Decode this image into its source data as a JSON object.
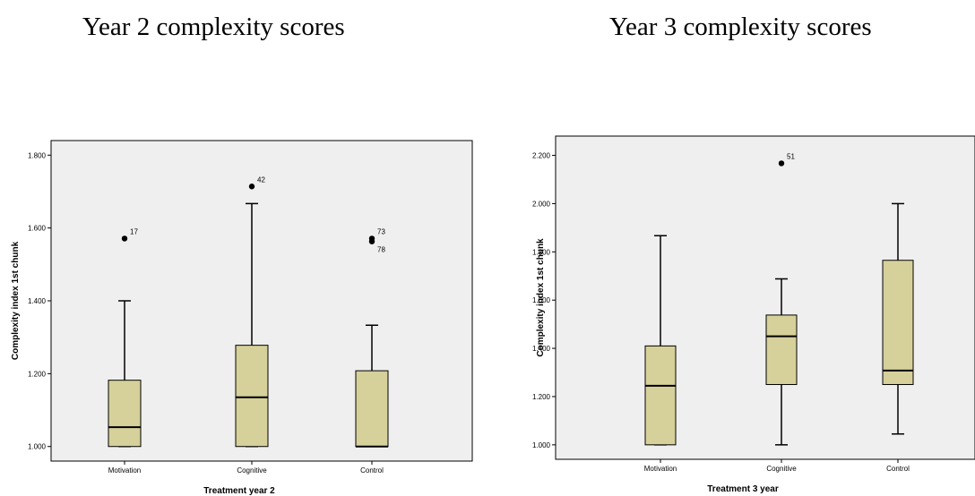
{
  "titles": {
    "left": "Year 2 complexity scores",
    "right": "Year 3 complexity scores"
  },
  "colors": {
    "plot_background": "#efefef",
    "box_fill": "#d6d09a",
    "line": "#000000"
  },
  "chart_data": [
    {
      "type": "boxplot",
      "xlabel": "Treatment year 2",
      "ylabel": "Complexity index 1st chunk",
      "ylim": [
        0.96,
        1.84
      ],
      "yticks": [
        1.0,
        1.2,
        1.4,
        1.6,
        1.8
      ],
      "ytick_labels": [
        "1.000",
        "1.200",
        "1.400",
        "1.600",
        "1.800"
      ],
      "grid": false,
      "categories": [
        "Motivation",
        "Cognitive",
        "Control"
      ],
      "boxes": [
        {
          "category": "Motivation",
          "whisker_low": 1.0,
          "q1": 1.0,
          "median": 1.053,
          "q3": 1.182,
          "whisker_high": 1.4,
          "outliers": [
            {
              "label": "17",
              "value": 1.571
            }
          ]
        },
        {
          "category": "Cognitive",
          "whisker_low": 1.0,
          "q1": 1.0,
          "median": 1.135,
          "q3": 1.278,
          "whisker_high": 1.667,
          "outliers": [
            {
              "label": "42",
              "value": 1.714
            }
          ]
        },
        {
          "category": "Control",
          "whisker_low": 1.0,
          "q1": 1.0,
          "median": 1.0,
          "q3": 1.208,
          "whisker_high": 1.333,
          "outliers": [
            {
              "label": "73",
              "value": 1.571
            },
            {
              "label": "78",
              "value": 1.563
            }
          ]
        }
      ]
    },
    {
      "type": "boxplot",
      "xlabel": "Treatment 3 year",
      "ylabel": "Complexity index 1st chunk",
      "ylim": [
        0.94,
        2.28
      ],
      "yticks": [
        1.0,
        1.2,
        1.4,
        1.6,
        1.8,
        2.0,
        2.2
      ],
      "ytick_labels": [
        "1.000",
        "1.200",
        "1.400",
        "1.600",
        "1.800",
        "2.000",
        "2.200"
      ],
      "grid": false,
      "categories": [
        "Motivation",
        "Cognitive",
        "Control"
      ],
      "boxes": [
        {
          "category": "Motivation",
          "whisker_low": 1.0,
          "q1": 1.0,
          "median": 1.245,
          "q3": 1.41,
          "whisker_high": 1.867,
          "outliers": []
        },
        {
          "category": "Cognitive",
          "whisker_low": 1.0,
          "q1": 1.25,
          "median": 1.45,
          "q3": 1.538,
          "whisker_high": 1.688,
          "outliers": [
            {
              "label": "51",
              "value": 2.167
            }
          ]
        },
        {
          "category": "Control",
          "whisker_low": 1.045,
          "q1": 1.25,
          "median": 1.308,
          "q3": 1.765,
          "whisker_high": 2.0,
          "outliers": []
        }
      ]
    }
  ]
}
